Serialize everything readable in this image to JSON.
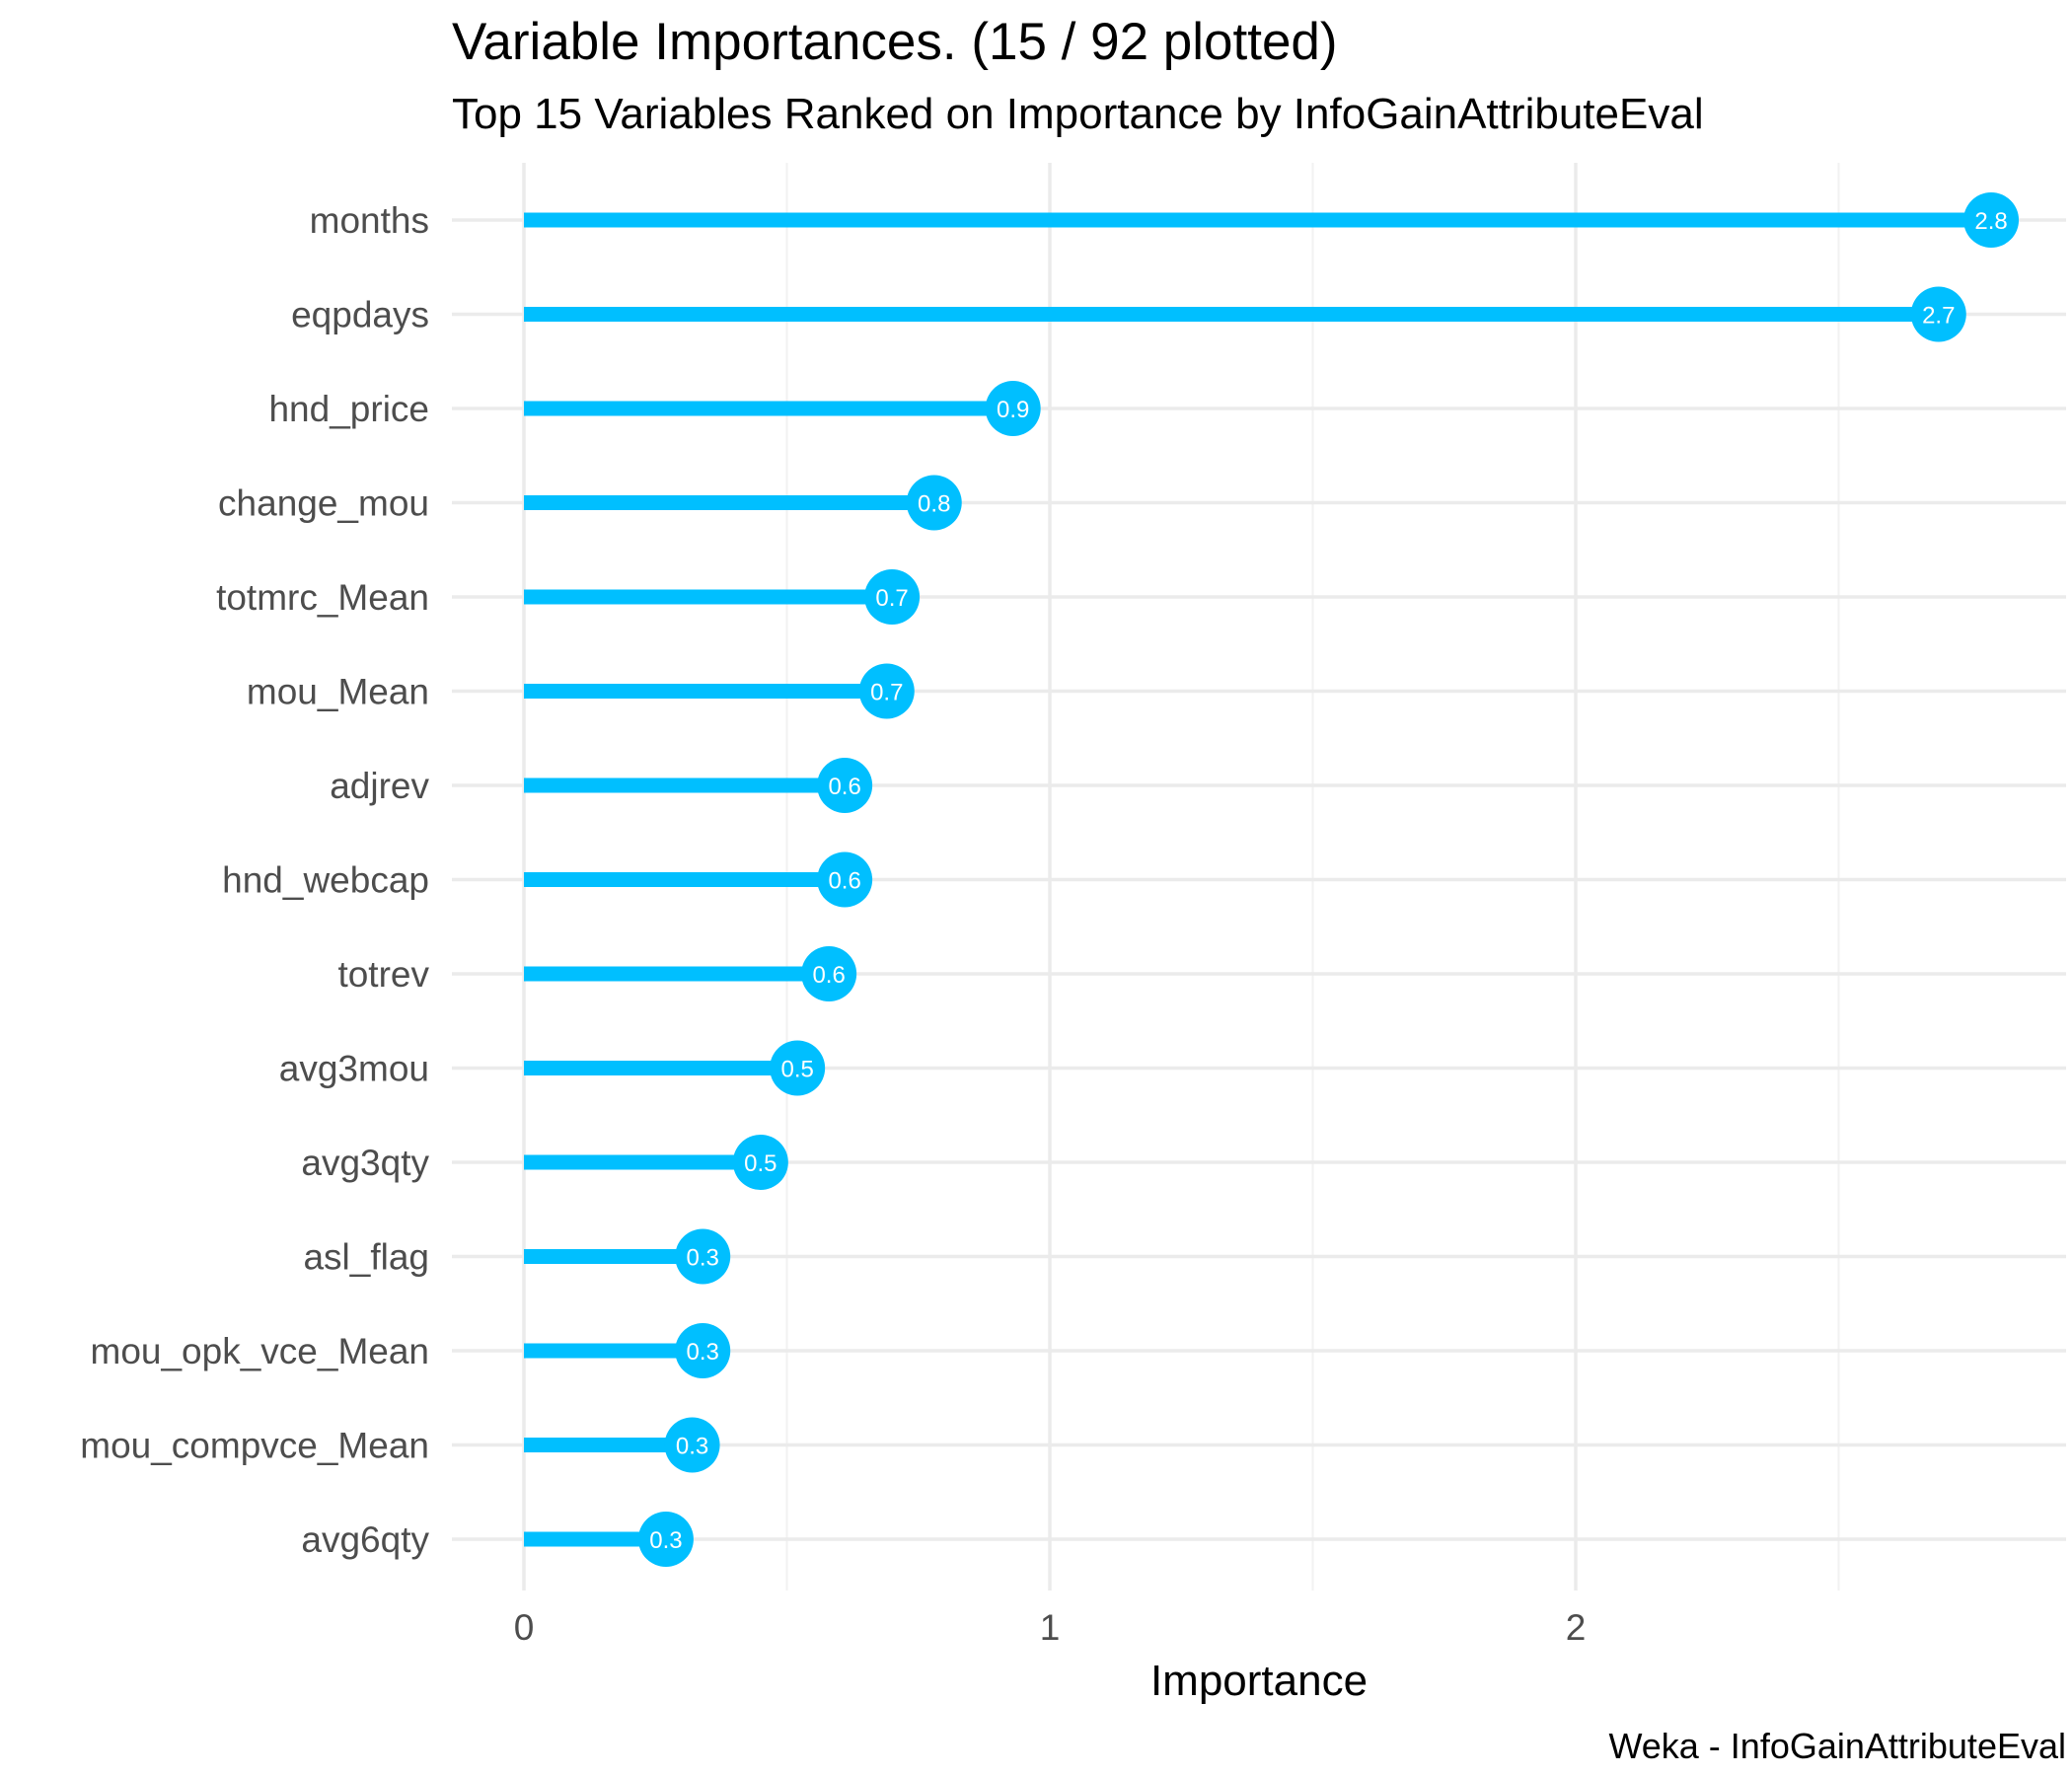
{
  "chart_data": {
    "type": "bar",
    "style": "lollipop-horizontal",
    "title": "Variable Importances. (15 / 92 plotted)",
    "subtitle": "Top 15 Variables Ranked on Importance by InfoGainAttributeEval",
    "xlabel": "Importance",
    "ylabel": "",
    "caption": "Weka - InfoGainAttributeEval",
    "xlim": [
      -0.15,
      2.93
    ],
    "x_ticks": [
      0,
      1,
      2
    ],
    "grid": true,
    "legend": "none",
    "color": "#00BFFF",
    "categories": [
      "months",
      "eqpdays",
      "hnd_price",
      "change_mou",
      "totmrc_Mean",
      "mou_Mean",
      "adjrev",
      "hnd_webcap",
      "totrev",
      "avg3mou",
      "avg3qty",
      "asl_flag",
      "mou_opk_vce_Mean",
      "mou_compvce_Mean",
      "avg6qty"
    ],
    "values": [
      2.79,
      2.69,
      0.93,
      0.78,
      0.7,
      0.69,
      0.61,
      0.61,
      0.58,
      0.52,
      0.45,
      0.34,
      0.34,
      0.32,
      0.27
    ],
    "value_labels": [
      "2.8",
      "2.7",
      "0.9",
      "0.8",
      "0.7",
      "0.7",
      "0.6",
      "0.6",
      "0.6",
      "0.5",
      "0.5",
      "0.3",
      "0.3",
      "0.3",
      "0.3"
    ]
  }
}
